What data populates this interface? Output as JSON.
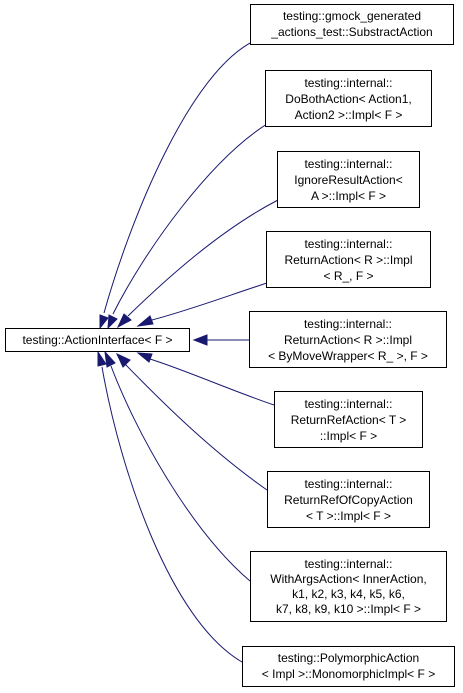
{
  "diagram": {
    "base": {
      "lines": [
        "testing::ActionInterface< F >"
      ]
    },
    "derived": [
      {
        "lines": [
          "testing::gmock_generated",
          "_actions_test::SubstractAction"
        ]
      },
      {
        "lines": [
          "testing::internal::",
          "DoBothAction< Action1,",
          "Action2 >::Impl< F >"
        ]
      },
      {
        "lines": [
          "testing::internal::",
          "IgnoreResultAction<",
          "A >::Impl< F >"
        ]
      },
      {
        "lines": [
          "testing::internal::",
          "ReturnAction< R >::Impl",
          "< R_, F >"
        ]
      },
      {
        "lines": [
          "testing::internal::",
          "ReturnAction< R >::Impl",
          "< ByMoveWrapper< R_ >, F >"
        ]
      },
      {
        "lines": [
          "testing::internal::",
          "ReturnRefAction< T >",
          "::Impl< F >"
        ]
      },
      {
        "lines": [
          "testing::internal::",
          "ReturnRefOfCopyAction",
          "< T >::Impl< F >"
        ]
      },
      {
        "lines": [
          "testing::internal::",
          "WithArgsAction< InnerAction,",
          "k1, k2, k3, k4, k5, k6,",
          "k7, k8, k9, k10 >::Impl< F >"
        ]
      },
      {
        "lines": [
          "testing::PolymorphicAction",
          "< Impl >::MonomorphicImpl< F >"
        ]
      }
    ],
    "edge_color": "#191970"
  }
}
